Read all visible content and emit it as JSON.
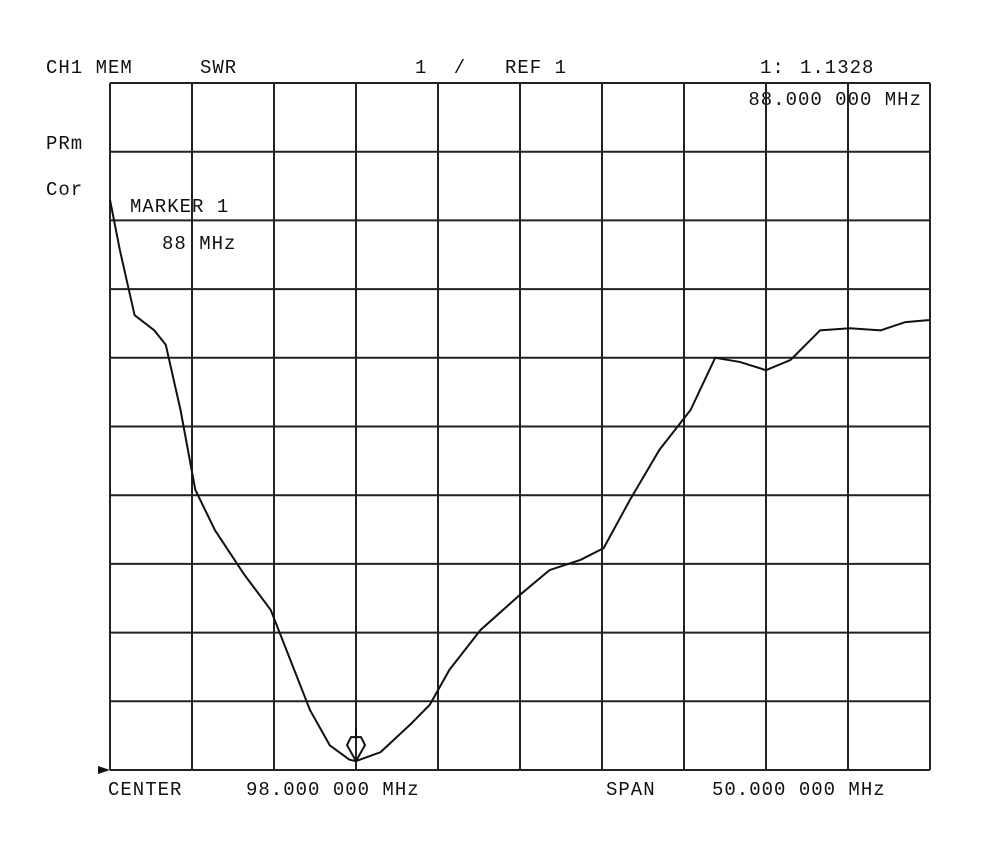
{
  "chart_data": {
    "type": "line",
    "header": {
      "channel": "CH1 MEM",
      "format": "SWR",
      "scale": "1 /",
      "reference": "REF 1",
      "marker_id": "1:",
      "marker_readout": "1.1328",
      "marker_frequency": "88.000 000 MHz"
    },
    "side_labels": [
      "PRm",
      "Cor"
    ],
    "marker_annotation": {
      "title": "MARKER 1",
      "frequency": "88 MHz"
    },
    "footer": {
      "center_label": "CENTER",
      "center_value": "98.000 000 MHz",
      "span_label": "SPAN",
      "span_value": "50.000 000 MHz"
    },
    "x": [
      73,
      73.6,
      74.5,
      75.7,
      76.4,
      77.3,
      78.2,
      79.4,
      81.2,
      82.8,
      84.0,
      85.2,
      86.4,
      87.6,
      88,
      89.5,
      91.3,
      92.5,
      93.7,
      95.6,
      98.0,
      99.8,
      101.7,
      103.1,
      104.7,
      106.5,
      108.4,
      109.9,
      111.4,
      113.0,
      114.5,
      116.3,
      118.1,
      120.0,
      121.5,
      123.0
    ],
    "series": [
      {
        "name": "SWR",
        "color": "#111111",
        "values": [
          9.3,
          8.57,
          7.62,
          7.4,
          7.19,
          6.24,
          5.08,
          4.49,
          3.84,
          3.33,
          2.6,
          1.87,
          1.36,
          1.15,
          1.13,
          1.26,
          1.66,
          1.95,
          2.46,
          3.04,
          3.55,
          3.91,
          4.06,
          4.23,
          4.93,
          5.66,
          6.24,
          7.0,
          6.94,
          6.82,
          6.97,
          7.4,
          7.43,
          7.4,
          7.52,
          7.55
        ]
      }
    ],
    "marker_index": 14,
    "xlim": [
      73,
      123
    ],
    "xticks": [
      73,
      78,
      83,
      88,
      93,
      98,
      103,
      108,
      113,
      118,
      123
    ],
    "ylim": [
      1,
      11
    ],
    "yticks": [
      1,
      2,
      3,
      4,
      5,
      6,
      7,
      8,
      9,
      10,
      11
    ],
    "grid": true
  }
}
